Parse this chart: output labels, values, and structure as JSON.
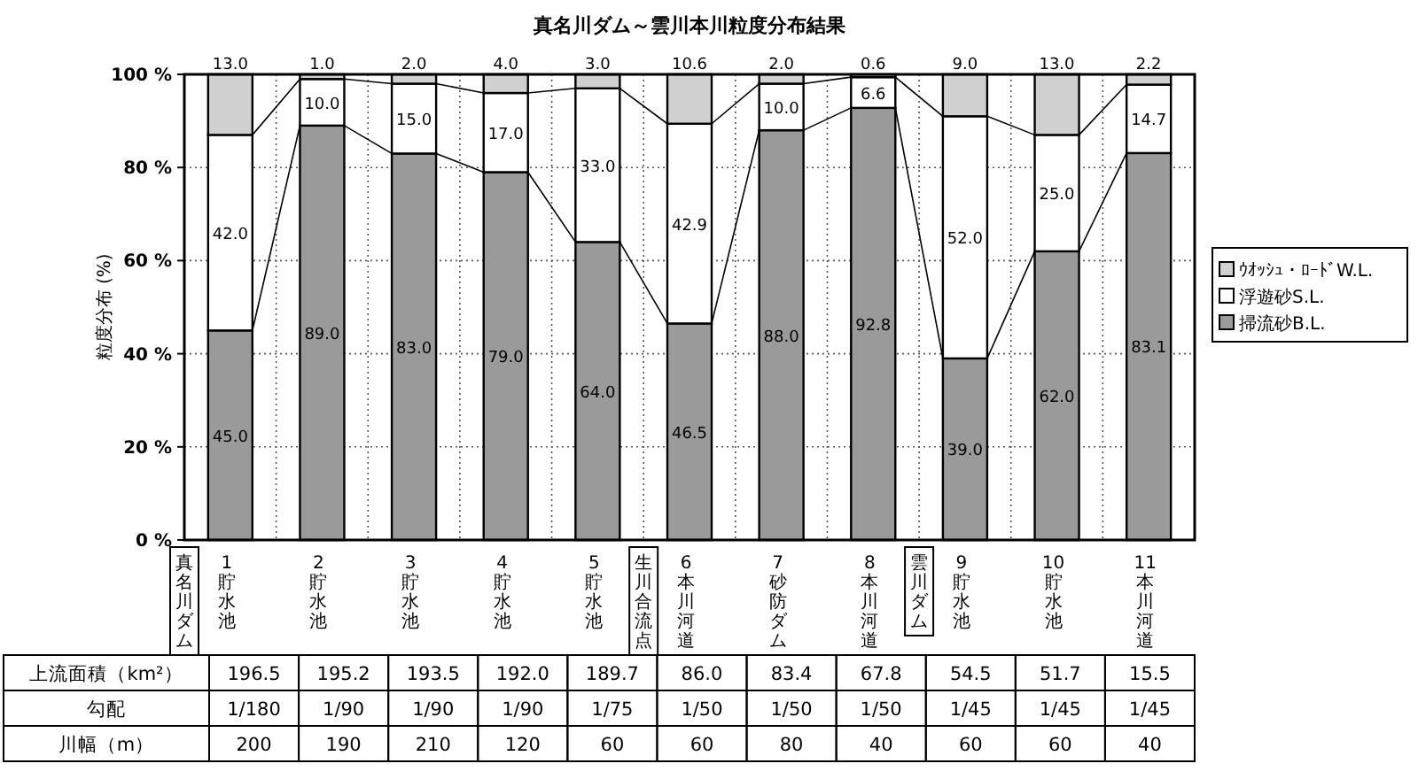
{
  "chart_data": {
    "type": "bar",
    "stacked": true,
    "title": "真名川ダム～雲川本川粒度分布結果",
    "ylabel": "粒度分布 (%)",
    "categories": [
      "1貯水池",
      "2貯水池",
      "3貯水池",
      "4貯水池",
      "5貯水池",
      "6本川河道",
      "7砂防ダム",
      "8本川河道",
      "9貯水池",
      "10貯水池",
      "11本川河道"
    ],
    "series": [
      {
        "name": "掃流砂B.L.",
        "color": "#9a9a9a",
        "values": [
          45.0,
          89.0,
          83.0,
          79.0,
          64.0,
          46.5,
          88.0,
          92.8,
          39.0,
          62.0,
          83.1
        ],
        "value_labels": [
          "45.0",
          "89.0",
          "83.0",
          "79.0",
          "64.0",
          "46.5",
          "88.0",
          "92.8",
          "39.0",
          "62.0",
          "83.1"
        ]
      },
      {
        "name": "浮遊砂S.L.",
        "color": "#ffffff",
        "values": [
          42.0,
          10.0,
          15.0,
          17.0,
          33.0,
          42.9,
          10.0,
          6.6,
          52.0,
          25.0,
          14.7
        ],
        "value_labels": [
          "42.0",
          "10.0",
          "15.0",
          "17.0",
          "33.0",
          "42.9",
          "10.0",
          "6.6",
          "52.0",
          "25.0",
          "14.7"
        ]
      },
      {
        "name": "ｳｵｯｼｭ・ﾛｰﾄﾞW.L.",
        "color": "#d0d0d0",
        "values": [
          13.0,
          1.0,
          2.0,
          4.0,
          3.0,
          10.6,
          2.0,
          0.6,
          9.0,
          13.0,
          2.2
        ],
        "value_labels": [
          "13.0",
          "1.0",
          "2.0",
          "4.0",
          "3.0",
          "10.6",
          "2.0",
          "0.6",
          "9.0",
          "13.0",
          "2.2"
        ]
      }
    ],
    "ylim": [
      0,
      100
    ],
    "yticks": [
      {
        "value": 0,
        "label": "0 %"
      },
      {
        "value": 20,
        "label": "20 %"
      },
      {
        "value": 40,
        "label": "40 %"
      },
      {
        "value": 60,
        "label": "60 %"
      },
      {
        "value": 80,
        "label": "80 %"
      },
      {
        "value": 100,
        "label": "100 %"
      }
    ],
    "grid": true,
    "legend": "right",
    "annotations": [
      "真名川ダム",
      "生川合流点",
      "雲川ダム",
      "上流面積（km²）",
      "196.5",
      "195.2",
      "193.5",
      "192.0",
      "189.7",
      "86.0",
      "83.4",
      "67.8",
      "54.5",
      "51.7",
      "15.5",
      "勾配",
      "1/180",
      "1/90",
      "1/90",
      "1/90",
      "1/75",
      "1/50",
      "1/50",
      "1/50",
      "1/45",
      "1/45",
      "1/45",
      "川幅（m）",
      "200",
      "190",
      "210",
      "120",
      "60",
      "60",
      "80",
      "40",
      "60",
      "60",
      "40"
    ]
  }
}
